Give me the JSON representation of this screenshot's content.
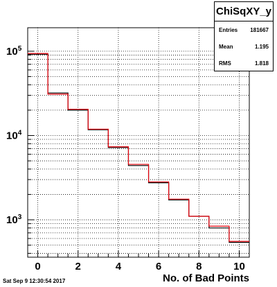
{
  "chart_data": {
    "type": "histogram",
    "title": "ChiSqXY_y",
    "xlabel": "No. of Bad Points",
    "ylabel": "",
    "yscale": "log",
    "xlim": [
      -0.5,
      10.5
    ],
    "ylim": [
      360,
      190000
    ],
    "grid": true,
    "bins": [
      0,
      1,
      2,
      3,
      4,
      5,
      6,
      7,
      8,
      9,
      10
    ],
    "series": [
      {
        "values": [
          92000,
          32000,
          20000,
          11700,
          7200,
          4400,
          2750,
          1720,
          1100,
          800,
          540
        ],
        "color": "#000000"
      },
      {
        "values": [
          94000,
          31000,
          20500,
          11900,
          7350,
          4550,
          2820,
          1760,
          1100,
          840,
          555
        ],
        "color": "#e8000b"
      }
    ],
    "x_ticks": [
      "0",
      "2",
      "4",
      "6",
      "8",
      "10"
    ],
    "y_ticks": [
      {
        "value": 1000,
        "label": "10",
        "exp": "3"
      },
      {
        "value": 10000,
        "label": "10",
        "exp": "4"
      },
      {
        "value": 100000,
        "label": "10",
        "exp": "5"
      }
    ],
    "stats": {
      "title": "ChiSqXY_y",
      "rows": [
        {
          "key": "Entries",
          "value": "181667"
        },
        {
          "key": "Mean",
          "value": "1.195"
        },
        {
          "key": "RMS",
          "value": "1.818"
        }
      ]
    }
  },
  "footer": {
    "datestamp": "Sat Sep  9 12:30:54 2017"
  }
}
